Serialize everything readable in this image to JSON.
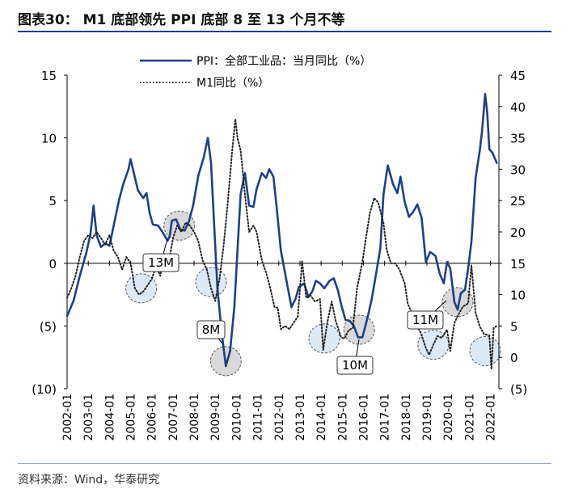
{
  "header": {
    "title": "图表30： M1 底部领先 PPI 底部 8 至 13 个月不等"
  },
  "footer": {
    "source": "资料来源：Wind，华泰研究"
  },
  "colors": {
    "ppi_line": "#1f3f8a",
    "m1_line": "#222222",
    "circle_fill": "#dce9f7",
    "circle_fill_grey": "#d9d9d9",
    "axis": "#000000"
  },
  "chart_data": {
    "type": "line",
    "legend_position": "top",
    "x_tick_labels": [
      "2002-01",
      "2003-01",
      "2004-01",
      "2005-01",
      "2006-01",
      "2007-01",
      "2008-01",
      "2009-01",
      "2010-01",
      "2011-01",
      "2012-01",
      "2013-01",
      "2014-01",
      "2015-01",
      "2016-01",
      "2017-01",
      "2018-01",
      "2019-01",
      "2020-01",
      "2021-01",
      "2022-01"
    ],
    "x_range": [
      2002.0,
      2022.4
    ],
    "y_left": {
      "range": [
        -10,
        15
      ],
      "ticks": [
        15,
        10,
        5,
        0,
        -5,
        -10
      ],
      "tick_labels": [
        "15",
        "10",
        "5",
        "0",
        "(5)",
        "(10)"
      ]
    },
    "y_right": {
      "range": [
        -5,
        45
      ],
      "ticks": [
        45,
        40,
        35,
        30,
        25,
        20,
        15,
        10,
        5,
        0,
        -5
      ],
      "tick_labels": [
        "45",
        "40",
        "35",
        "30",
        "25",
        "20",
        "15",
        "10",
        "5",
        "0",
        "(5)"
      ]
    },
    "series": [
      {
        "name": "PPI：全部工业品：当月同比（%）",
        "axis": "left",
        "style": "solid",
        "points": [
          [
            2002.0,
            -4.2
          ],
          [
            2002.3,
            -3.0
          ],
          [
            2002.6,
            -1.0
          ],
          [
            2002.9,
            0.8
          ],
          [
            2003.1,
            2.3
          ],
          [
            2003.25,
            4.6
          ],
          [
            2003.4,
            2.2
          ],
          [
            2003.6,
            1.3
          ],
          [
            2003.8,
            1.6
          ],
          [
            2004.0,
            1.4
          ],
          [
            2004.2,
            3.0
          ],
          [
            2004.45,
            5.0
          ],
          [
            2004.65,
            6.3
          ],
          [
            2004.9,
            7.5
          ],
          [
            2005.0,
            8.3
          ],
          [
            2005.15,
            7.2
          ],
          [
            2005.35,
            5.8
          ],
          [
            2005.6,
            5.2
          ],
          [
            2005.75,
            5.6
          ],
          [
            2005.9,
            4.0
          ],
          [
            2006.05,
            3.1
          ],
          [
            2006.3,
            3.0
          ],
          [
            2006.5,
            2.5
          ],
          [
            2006.75,
            1.8
          ],
          [
            2006.85,
            2.2
          ],
          [
            2006.95,
            3.4
          ],
          [
            2007.15,
            3.5
          ],
          [
            2007.35,
            2.7
          ],
          [
            2007.55,
            2.6
          ],
          [
            2007.75,
            3.3
          ],
          [
            2007.95,
            4.6
          ],
          [
            2008.2,
            7.0
          ],
          [
            2008.45,
            8.4
          ],
          [
            2008.65,
            10.0
          ],
          [
            2008.8,
            8.0
          ],
          [
            2008.95,
            3.0
          ],
          [
            2009.1,
            -2.0
          ],
          [
            2009.3,
            -5.5
          ],
          [
            2009.5,
            -8.2
          ],
          [
            2009.7,
            -7.0
          ],
          [
            2009.9,
            -3.5
          ],
          [
            2010.05,
            1.0
          ],
          [
            2010.2,
            5.5
          ],
          [
            2010.4,
            7.2
          ],
          [
            2010.6,
            4.6
          ],
          [
            2010.8,
            4.5
          ],
          [
            2010.95,
            5.9
          ],
          [
            2011.2,
            7.2
          ],
          [
            2011.4,
            6.8
          ],
          [
            2011.55,
            7.5
          ],
          [
            2011.75,
            6.9
          ],
          [
            2011.9,
            4.5
          ],
          [
            2012.1,
            1.0
          ],
          [
            2012.4,
            -1.7
          ],
          [
            2012.6,
            -3.5
          ],
          [
            2012.8,
            -2.8
          ],
          [
            2012.95,
            -1.9
          ],
          [
            2013.2,
            -1.6
          ],
          [
            2013.4,
            -2.7
          ],
          [
            2013.6,
            -2.2
          ],
          [
            2013.75,
            -1.4
          ],
          [
            2013.95,
            -1.6
          ],
          [
            2014.15,
            -2.0
          ],
          [
            2014.4,
            -1.4
          ],
          [
            2014.6,
            -1.2
          ],
          [
            2014.8,
            -2.2
          ],
          [
            2014.95,
            -3.3
          ],
          [
            2015.15,
            -4.5
          ],
          [
            2015.35,
            -4.6
          ],
          [
            2015.55,
            -5.0
          ],
          [
            2015.75,
            -5.9
          ],
          [
            2015.95,
            -5.9
          ],
          [
            2016.2,
            -4.3
          ],
          [
            2016.4,
            -2.8
          ],
          [
            2016.6,
            -0.8
          ],
          [
            2016.8,
            1.2
          ],
          [
            2016.95,
            5.5
          ],
          [
            2017.15,
            7.8
          ],
          [
            2017.4,
            6.3
          ],
          [
            2017.6,
            5.6
          ],
          [
            2017.75,
            6.9
          ],
          [
            2017.95,
            4.9
          ],
          [
            2018.15,
            3.7
          ],
          [
            2018.35,
            4.1
          ],
          [
            2018.55,
            4.7
          ],
          [
            2018.75,
            3.6
          ],
          [
            2018.95,
            0.1
          ],
          [
            2019.15,
            0.9
          ],
          [
            2019.4,
            0.6
          ],
          [
            2019.6,
            -0.8
          ],
          [
            2019.8,
            -1.6
          ],
          [
            2019.95,
            0.1
          ],
          [
            2020.1,
            -0.4
          ],
          [
            2020.3,
            -3.1
          ],
          [
            2020.45,
            -3.7
          ],
          [
            2020.6,
            -2.4
          ],
          [
            2020.8,
            -2.1
          ],
          [
            2020.95,
            -0.4
          ],
          [
            2021.1,
            1.7
          ],
          [
            2021.3,
            6.8
          ],
          [
            2021.5,
            9.0
          ],
          [
            2021.6,
            10.5
          ],
          [
            2021.75,
            13.5
          ],
          [
            2021.85,
            12.0
          ],
          [
            2021.95,
            9.1
          ],
          [
            2022.1,
            8.8
          ],
          [
            2022.3,
            8.0
          ]
        ]
      },
      {
        "name": "M1同比（%）",
        "axis": "right",
        "style": "dotted",
        "points": [
          [
            2002.0,
            9.5
          ],
          [
            2002.2,
            11.0
          ],
          [
            2002.4,
            13.0
          ],
          [
            2002.6,
            16.0
          ],
          [
            2002.8,
            18.5
          ],
          [
            2003.0,
            19.5
          ],
          [
            2003.2,
            19.0
          ],
          [
            2003.4,
            20.0
          ],
          [
            2003.6,
            19.0
          ],
          [
            2003.8,
            18.0
          ],
          [
            2004.0,
            19.5
          ],
          [
            2004.2,
            17.0
          ],
          [
            2004.4,
            16.0
          ],
          [
            2004.6,
            14.0
          ],
          [
            2004.8,
            16.0
          ],
          [
            2005.0,
            15.0
          ],
          [
            2005.2,
            11.0
          ],
          [
            2005.4,
            10.0
          ],
          [
            2005.6,
            10.5
          ],
          [
            2005.8,
            11.5
          ],
          [
            2006.0,
            12.5
          ],
          [
            2006.2,
            14.5
          ],
          [
            2006.4,
            13.0
          ],
          [
            2006.6,
            16.5
          ],
          [
            2006.8,
            15.0
          ],
          [
            2007.0,
            19.0
          ],
          [
            2007.2,
            21.0
          ],
          [
            2007.4,
            20.0
          ],
          [
            2007.6,
            21.5
          ],
          [
            2007.8,
            21.0
          ],
          [
            2008.0,
            20.0
          ],
          [
            2008.2,
            18.5
          ],
          [
            2008.4,
            15.5
          ],
          [
            2008.6,
            14.0
          ],
          [
            2008.8,
            11.0
          ],
          [
            2009.0,
            9.0
          ],
          [
            2009.2,
            12.5
          ],
          [
            2009.4,
            18.0
          ],
          [
            2009.6,
            25.0
          ],
          [
            2009.8,
            33.0
          ],
          [
            2009.95,
            38.0
          ],
          [
            2010.05,
            35.0
          ],
          [
            2010.2,
            33.0
          ],
          [
            2010.4,
            26.0
          ],
          [
            2010.6,
            20.0
          ],
          [
            2010.8,
            21.0
          ],
          [
            2010.95,
            20.0
          ],
          [
            2011.2,
            15.5
          ],
          [
            2011.4,
            13.5
          ],
          [
            2011.6,
            11.0
          ],
          [
            2011.8,
            8.0
          ],
          [
            2011.95,
            7.9
          ],
          [
            2012.1,
            4.5
          ],
          [
            2012.3,
            5.0
          ],
          [
            2012.5,
            4.5
          ],
          [
            2012.7,
            5.5
          ],
          [
            2012.9,
            6.5
          ],
          [
            2013.1,
            15.3
          ],
          [
            2013.3,
            9.5
          ],
          [
            2013.5,
            9.9
          ],
          [
            2013.7,
            8.9
          ],
          [
            2013.95,
            9.3
          ],
          [
            2014.1,
            1.2
          ],
          [
            2014.3,
            5.7
          ],
          [
            2014.5,
            8.9
          ],
          [
            2014.7,
            5.7
          ],
          [
            2014.95,
            3.2
          ],
          [
            2015.1,
            3.0
          ],
          [
            2015.3,
            4.3
          ],
          [
            2015.5,
            4.7
          ],
          [
            2015.7,
            11.0
          ],
          [
            2015.95,
            15.2
          ],
          [
            2016.1,
            18.6
          ],
          [
            2016.3,
            22.9
          ],
          [
            2016.5,
            25.4
          ],
          [
            2016.7,
            24.7
          ],
          [
            2016.95,
            21.4
          ],
          [
            2017.1,
            17.1
          ],
          [
            2017.3,
            15.0
          ],
          [
            2017.5,
            15.0
          ],
          [
            2017.7,
            14.0
          ],
          [
            2017.95,
            11.8
          ],
          [
            2018.1,
            8.5
          ],
          [
            2018.3,
            7.0
          ],
          [
            2018.5,
            5.1
          ],
          [
            2018.7,
            4.0
          ],
          [
            2018.95,
            1.5
          ],
          [
            2019.1,
            0.4
          ],
          [
            2019.3,
            2.0
          ],
          [
            2019.5,
            3.4
          ],
          [
            2019.7,
            3.1
          ],
          [
            2019.95,
            4.4
          ],
          [
            2020.1,
            1.0
          ],
          [
            2020.3,
            5.5
          ],
          [
            2020.5,
            6.9
          ],
          [
            2020.7,
            8.1
          ],
          [
            2020.95,
            8.6
          ],
          [
            2021.1,
            14.7
          ],
          [
            2021.3,
            7.1
          ],
          [
            2021.5,
            4.9
          ],
          [
            2021.7,
            3.7
          ],
          [
            2021.95,
            3.5
          ],
          [
            2022.05,
            -1.9
          ],
          [
            2022.15,
            4.7
          ],
          [
            2022.3,
            5.0
          ]
        ]
      }
    ],
    "annotations": [
      {
        "label": "13M",
        "circles": [
          {
            "x": 2005.5,
            "y": 11.0,
            "axis": "right",
            "fill": "blue"
          },
          {
            "x": 2007.3,
            "y": 3.0,
            "axis": "left",
            "fill": "grey"
          }
        ]
      },
      {
        "label": "8M",
        "circles": [
          {
            "x": 2008.8,
            "y": 12.0,
            "axis": "right",
            "fill": "blue"
          },
          {
            "x": 2009.5,
            "y": -7.8,
            "axis": "left",
            "fill": "grey"
          }
        ]
      },
      {
        "label": "10M",
        "circles": [
          {
            "x": 2014.15,
            "y": 3.0,
            "axis": "right",
            "fill": "blue"
          },
          {
            "x": 2015.8,
            "y": -5.3,
            "axis": "left",
            "fill": "grey"
          }
        ]
      },
      {
        "label": "11M",
        "circles": [
          {
            "x": 2019.3,
            "y": 2.0,
            "axis": "right",
            "fill": "blue"
          },
          {
            "x": 2020.45,
            "y": -3.1,
            "axis": "left",
            "fill": "grey"
          }
        ]
      },
      {
        "label": "",
        "circles": [
          {
            "x": 2021.75,
            "y": 1.0,
            "axis": "right",
            "fill": "blue"
          }
        ]
      }
    ]
  }
}
